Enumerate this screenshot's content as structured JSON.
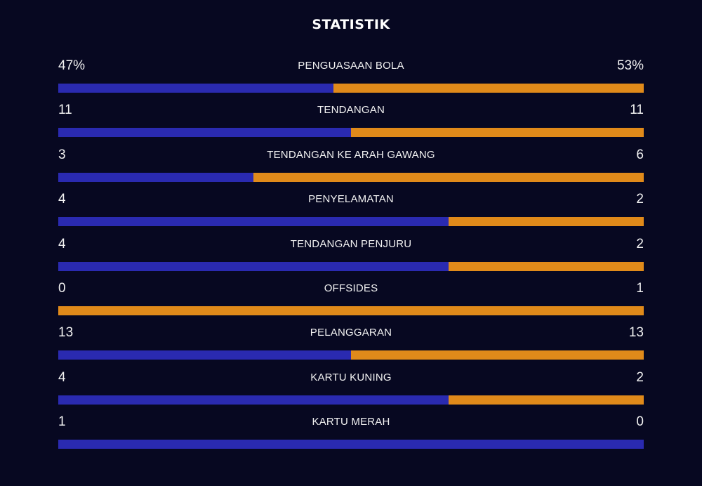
{
  "title": "STATISTIK",
  "colors": {
    "background": "#070821",
    "home": "#2a2ab0",
    "away": "#e08a1a"
  },
  "stats": [
    {
      "label": "PENGUASAAN BOLA",
      "home_display": "47%",
      "away_display": "53%",
      "home": 47,
      "away": 53
    },
    {
      "label": "TENDANGAN",
      "home_display": "11",
      "away_display": "11",
      "home": 11,
      "away": 11
    },
    {
      "label": "TENDANGAN KE ARAH GAWANG",
      "home_display": "3",
      "away_display": "6",
      "home": 3,
      "away": 6
    },
    {
      "label": "PENYELAMATAN",
      "home_display": "4",
      "away_display": "2",
      "home": 4,
      "away": 2
    },
    {
      "label": "TENDANGAN PENJURU",
      "home_display": "4",
      "away_display": "2",
      "home": 4,
      "away": 2
    },
    {
      "label": "OFFSIDES",
      "home_display": "0",
      "away_display": "1",
      "home": 0,
      "away": 1
    },
    {
      "label": "PELANGGARAN",
      "home_display": "13",
      "away_display": "13",
      "home": 13,
      "away": 13
    },
    {
      "label": "KARTU KUNING",
      "home_display": "4",
      "away_display": "2",
      "home": 4,
      "away": 2
    },
    {
      "label": "KARTU MERAH",
      "home_display": "1",
      "away_display": "0",
      "home": 1,
      "away": 0
    }
  ]
}
